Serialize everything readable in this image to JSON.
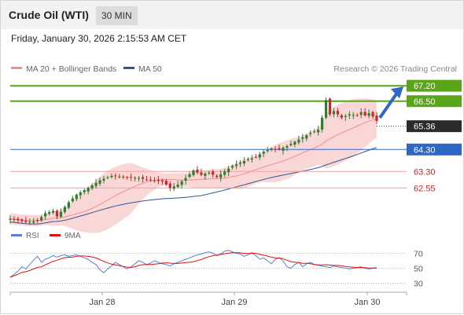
{
  "header": {
    "title": "Crude Oil (WTI)",
    "timeframe": "30 MIN",
    "datetime": "Friday, January 30, 2026 2:15:53 AM CET"
  },
  "legend": {
    "items": [
      {
        "label": "MA 20 + Bollinger Bands",
        "color": "#f28e8e"
      },
      {
        "label": "MA 50",
        "color": "#2f5597"
      }
    ],
    "credit": "Research © 2026 Trading Central"
  },
  "colors": {
    "up": "#2e7d32",
    "down": "#c62828",
    "bands": "#f8caca",
    "ma50": "#2f5597",
    "green_level": "#5aa51a",
    "red_level": "#e06a6a",
    "blue_level": "#2f67c6",
    "rsi": "#5a7fd6",
    "rsi_ma": "#e01010"
  },
  "levels": [
    {
      "value": 67.2,
      "label": "67.20",
      "kind": "resistance"
    },
    {
      "value": 66.5,
      "label": "66.50",
      "kind": "resistance"
    },
    {
      "value": 65.36,
      "label": "65.36",
      "kind": "last"
    },
    {
      "value": 64.3,
      "label": "64.30",
      "kind": "pivot"
    },
    {
      "value": 63.3,
      "label": "63.30",
      "kind": "support"
    },
    {
      "value": 62.55,
      "label": "62.55",
      "kind": "support"
    }
  ],
  "chart_data": {
    "type": "candlestick",
    "instrument": "Crude Oil (WTI)",
    "interval": "30 MIN",
    "price_range": [
      60.7,
      67.6
    ],
    "x_ticks": [
      "Jan 28",
      "Jan 29",
      "Jan 30"
    ],
    "price_path": [
      [
        0,
        61.15
      ],
      [
        4,
        61.0
      ],
      [
        7,
        61.05
      ],
      [
        9,
        61.4
      ],
      [
        11,
        61.5
      ],
      [
        12,
        61.25
      ],
      [
        15,
        61.9
      ],
      [
        17,
        62.25
      ],
      [
        20,
        62.55
      ],
      [
        23,
        62.9
      ],
      [
        26,
        63.1
      ],
      [
        29,
        63.05
      ],
      [
        33,
        63.0
      ],
      [
        36,
        62.9
      ],
      [
        39,
        62.85
      ],
      [
        41,
        62.55
      ],
      [
        43,
        62.7
      ],
      [
        45,
        63.0
      ],
      [
        47,
        63.35
      ],
      [
        49,
        63.15
      ],
      [
        51,
        63.25
      ],
      [
        53,
        63.05
      ],
      [
        55,
        63.3
      ],
      [
        57,
        63.55
      ],
      [
        59,
        63.7
      ],
      [
        61,
        63.85
      ],
      [
        63,
        63.95
      ],
      [
        65,
        64.2
      ],
      [
        67,
        64.35
      ],
      [
        69,
        64.3
      ],
      [
        71,
        64.45
      ],
      [
        73,
        64.65
      ],
      [
        75,
        64.85
      ],
      [
        77,
        65.05
      ],
      [
        79,
        65.2
      ],
      [
        80,
        65.75
      ],
      [
        81,
        66.55
      ],
      [
        82,
        65.9
      ],
      [
        83,
        66.05
      ],
      [
        85,
        65.75
      ],
      [
        87,
        65.9
      ],
      [
        89,
        65.85
      ],
      [
        90,
        66.0
      ],
      [
        91,
        65.85
      ],
      [
        92,
        65.95
      ],
      [
        93,
        65.8
      ],
      [
        94,
        65.6
      ]
    ],
    "forecast_target": 67.2,
    "rsi": {
      "name": "RSI",
      "ma_name": "9MA",
      "levels": [
        70,
        50,
        30
      ],
      "range": [
        20,
        80
      ],
      "values": [
        38,
        42,
        46,
        52,
        49,
        55,
        61,
        66,
        58,
        62,
        64,
        67,
        65,
        67,
        68,
        66,
        67,
        68,
        66,
        64,
        62,
        58,
        55,
        48,
        44,
        49,
        53,
        58,
        55,
        52,
        49,
        52,
        56,
        60,
        58,
        55,
        57,
        60,
        58,
        56,
        55,
        53,
        56,
        58,
        60,
        62,
        64,
        66,
        68,
        69,
        71,
        72,
        70,
        67,
        69,
        73,
        74,
        72,
        70,
        69,
        66,
        68,
        71,
        67,
        62,
        64,
        60,
        56,
        62,
        64,
        60,
        52,
        50,
        55,
        58,
        52,
        56,
        58,
        55,
        54,
        53,
        52,
        51,
        53,
        52,
        51,
        50,
        49,
        50,
        51,
        52,
        50,
        49,
        50,
        51
      ]
    }
  }
}
